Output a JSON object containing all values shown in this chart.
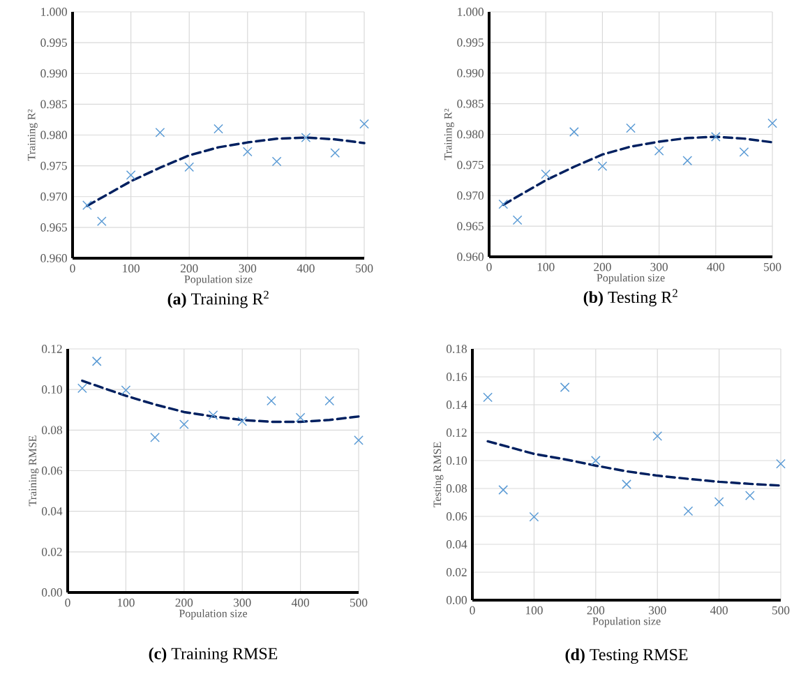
{
  "chart_data": [
    {
      "type": "scatter",
      "title": "**(a)** Training R$^{2}$",
      "xlabel": "Population size",
      "ylabel": "Training R²",
      "grid": true,
      "xlim": [
        0,
        500
      ],
      "ylim": [
        0.96,
        1.0
      ],
      "xticks": [
        0,
        100,
        200,
        300,
        400,
        500
      ],
      "yticks": [
        {
          "value": 0.96,
          "label": "0.960"
        },
        {
          "value": 0.965,
          "label": "0.965"
        },
        {
          "value": 0.97,
          "label": "0.970"
        },
        {
          "value": 0.975,
          "label": "0.975"
        },
        {
          "value": 0.98,
          "label": "0.980"
        },
        {
          "value": 0.985,
          "label": "0.985"
        },
        {
          "value": 0.99,
          "label": "0.990"
        },
        {
          "value": 0.995,
          "label": "0.995"
        },
        {
          "value": 1.0,
          "label": "1.000"
        }
      ],
      "x": [
        25,
        50,
        100,
        150,
        200,
        250,
        300,
        350,
        400,
        450,
        500
      ],
      "series": [
        {
          "marker": "cross",
          "color": "#5b9bd5",
          "values": [
            0.9686,
            0.966,
            0.9735,
            0.9804,
            0.9748,
            0.981,
            0.9773,
            0.9757,
            0.9796,
            0.9771,
            0.9818
          ]
        },
        {
          "type": "line",
          "line_style": "dashed",
          "color": "#002060",
          "x": [
            25,
            100,
            150,
            200,
            250,
            300,
            350,
            400,
            450,
            500
          ],
          "values": [
            0.9685,
            0.9725,
            0.9747,
            0.9767,
            0.978,
            0.9788,
            0.9794,
            0.9796,
            0.9793,
            0.9787
          ]
        }
      ]
    },
    {
      "type": "scatter",
      "title": "**(b)** Testing R$^{2}$",
      "xlabel": "Population size",
      "ylabel": "Training R²",
      "grid": true,
      "xlim": [
        0,
        500
      ],
      "ylim": [
        0.96,
        1.0
      ],
      "xticks": [
        0,
        100,
        200,
        300,
        400,
        500
      ],
      "yticks": [
        {
          "value": 0.96,
          "label": "0.960"
        },
        {
          "value": 0.965,
          "label": "0.965"
        },
        {
          "value": 0.97,
          "label": "0.970"
        },
        {
          "value": 0.975,
          "label": "0.975"
        },
        {
          "value": 0.98,
          "label": "0.980"
        },
        {
          "value": 0.985,
          "label": "0.985"
        },
        {
          "value": 0.99,
          "label": "0.990"
        },
        {
          "value": 0.995,
          "label": "0.995"
        },
        {
          "value": 1.0,
          "label": "1.000"
        }
      ],
      "x": [
        25,
        50,
        100,
        150,
        200,
        250,
        300,
        350,
        400,
        450,
        500
      ],
      "series": [
        {
          "marker": "cross",
          "color": "#5b9bd5",
          "values": [
            0.9686,
            0.966,
            0.9735,
            0.9804,
            0.9748,
            0.981,
            0.9773,
            0.9757,
            0.9796,
            0.9771,
            0.9818
          ]
        },
        {
          "type": "line",
          "line_style": "dashed",
          "color": "#002060",
          "x": [
            25,
            100,
            150,
            200,
            250,
            300,
            350,
            400,
            450,
            500
          ],
          "values": [
            0.9685,
            0.9725,
            0.9747,
            0.9767,
            0.978,
            0.9788,
            0.9794,
            0.9796,
            0.9793,
            0.9787
          ]
        }
      ]
    },
    {
      "type": "scatter",
      "title": "**(c)** Training RMSE",
      "xlabel": "Population size",
      "ylabel": "Training RMSE",
      "grid": true,
      "xlim": [
        0,
        500
      ],
      "ylim": [
        0,
        0.12
      ],
      "xticks": [
        0,
        100,
        200,
        300,
        400,
        500
      ],
      "yticks": [
        {
          "value": 0,
          "label": "0.00"
        },
        {
          "value": 0.02,
          "label": "0.02"
        },
        {
          "value": 0.04,
          "label": "0.04"
        },
        {
          "value": 0.06,
          "label": "0.06"
        },
        {
          "value": 0.08,
          "label": "0.08"
        },
        {
          "value": 0.1,
          "label": "0.10"
        },
        {
          "value": 0.12,
          "label": "0.12"
        }
      ],
      "x": [
        25,
        50,
        100,
        150,
        200,
        250,
        300,
        350,
        400,
        450,
        500
      ],
      "series": [
        {
          "marker": "cross",
          "color": "#5b9bd5",
          "values": [
            0.1006,
            0.1139,
            0.0997,
            0.0764,
            0.0828,
            0.0874,
            0.0844,
            0.0944,
            0.0862,
            0.0944,
            0.075
          ]
        },
        {
          "type": "line",
          "line_style": "dashed",
          "color": "#002060",
          "x": [
            25,
            100,
            150,
            200,
            250,
            300,
            350,
            400,
            450,
            500
          ],
          "values": [
            0.1043,
            0.0969,
            0.0926,
            0.0889,
            0.0867,
            0.085,
            0.0841,
            0.0841,
            0.085,
            0.0867
          ]
        }
      ]
    },
    {
      "type": "scatter",
      "title": "**(d)** Testing RMSE",
      "xlabel": "Population size",
      "ylabel": "Testing RMSE",
      "grid": true,
      "xlim": [
        0,
        500
      ],
      "ylim": [
        0,
        0.18
      ],
      "xticks": [
        0,
        100,
        200,
        300,
        400,
        500
      ],
      "yticks": [
        {
          "value": 0,
          "label": "0.00"
        },
        {
          "value": 0.02,
          "label": "0.02"
        },
        {
          "value": 0.04,
          "label": "0.04"
        },
        {
          "value": 0.06,
          "label": "0.06"
        },
        {
          "value": 0.08,
          "label": "0.08"
        },
        {
          "value": 0.1,
          "label": "0.10"
        },
        {
          "value": 0.12,
          "label": "0.12"
        },
        {
          "value": 0.14,
          "label": "0.14"
        },
        {
          "value": 0.16,
          "label": "0.16"
        },
        {
          "value": 0.18,
          "label": "0.18"
        }
      ],
      "x": [
        25,
        50,
        100,
        150,
        200,
        250,
        300,
        350,
        400,
        450,
        500
      ],
      "series": [
        {
          "marker": "cross",
          "color": "#5b9bd5",
          "values": [
            0.1453,
            0.079,
            0.0597,
            0.1525,
            0.1,
            0.083,
            0.1176,
            0.0638,
            0.0704,
            0.0749,
            0.0977
          ]
        },
        {
          "type": "line",
          "line_style": "dashed",
          "color": "#002060",
          "x": [
            25,
            100,
            150,
            200,
            250,
            300,
            350,
            400,
            450,
            500
          ],
          "values": [
            0.1138,
            0.1048,
            0.1009,
            0.0964,
            0.0923,
            0.0892,
            0.0869,
            0.0848,
            0.0833,
            0.0821
          ]
        }
      ]
    }
  ]
}
